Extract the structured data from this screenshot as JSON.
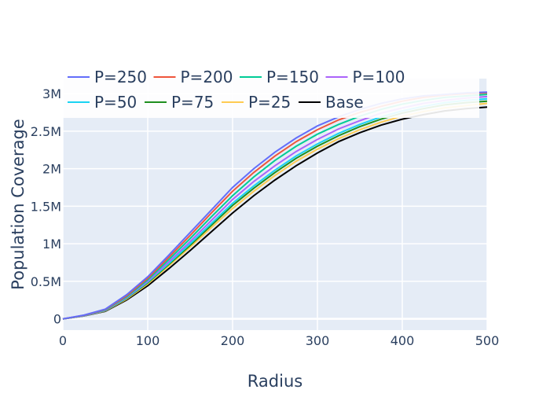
{
  "chart_data": {
    "type": "line",
    "xlabel": "Radius",
    "ylabel": "Population Coverage",
    "xlim": [
      0,
      500
    ],
    "ylim": [
      -150000,
      3200000
    ],
    "x_ticks": [
      0,
      100,
      200,
      300,
      400,
      500
    ],
    "x_tick_labels": [
      "0",
      "100",
      "200",
      "300",
      "400",
      "500"
    ],
    "y_ticks": [
      0,
      500000,
      1000000,
      1500000,
      2000000,
      2500000,
      3000000
    ],
    "y_tick_labels": [
      "0",
      "0.5M",
      "1M",
      "1.5M",
      "2M",
      "2.5M",
      "3M"
    ],
    "grid": true,
    "legend_position": "top",
    "x": [
      0,
      25,
      50,
      75,
      100,
      125,
      150,
      175,
      200,
      225,
      250,
      275,
      300,
      325,
      350,
      375,
      400,
      425,
      450,
      475,
      500
    ],
    "series": [
      {
        "name": "P=250",
        "color": "#636efa",
        "values": [
          0,
          50000,
          130000,
          320000,
          560000,
          850000,
          1150000,
          1450000,
          1750000,
          2000000,
          2220000,
          2410000,
          2570000,
          2690000,
          2790000,
          2870000,
          2930000,
          2970000,
          2990000,
          3010000,
          3020000
        ]
      },
      {
        "name": "P=200",
        "color": "#ef553b",
        "values": [
          0,
          48000,
          125000,
          305000,
          540000,
          820000,
          1110000,
          1410000,
          1700000,
          1950000,
          2170000,
          2360000,
          2520000,
          2650000,
          2750000,
          2830000,
          2900000,
          2950000,
          2980000,
          3000000,
          3010000
        ]
      },
      {
        "name": "P=150",
        "color": "#00cc96",
        "values": [
          0,
          46000,
          120000,
          295000,
          520000,
          790000,
          1070000,
          1360000,
          1640000,
          1890000,
          2110000,
          2300000,
          2460000,
          2590000,
          2700000,
          2790000,
          2860000,
          2910000,
          2950000,
          2970000,
          2990000
        ]
      },
      {
        "name": "P=100",
        "color": "#ab63fa",
        "values": [
          0,
          44000,
          115000,
          285000,
          500000,
          760000,
          1030000,
          1310000,
          1590000,
          1830000,
          2040000,
          2230000,
          2390000,
          2530000,
          2640000,
          2740000,
          2810000,
          2870000,
          2910000,
          2940000,
          2960000
        ]
      },
      {
        "name": "P=50",
        "color": "#19d3f3",
        "values": [
          0,
          43000,
          112000,
          278000,
          490000,
          740000,
          1000000,
          1270000,
          1540000,
          1770000,
          1980000,
          2170000,
          2330000,
          2470000,
          2590000,
          2690000,
          2770000,
          2830000,
          2880000,
          2910000,
          2930000
        ]
      },
      {
        "name": "P=75",
        "color": "#1f8f1f",
        "values": [
          0,
          42000,
          110000,
          272000,
          480000,
          725000,
          980000,
          1245000,
          1510000,
          1740000,
          1950000,
          2140000,
          2300000,
          2440000,
          2560000,
          2660000,
          2740000,
          2800000,
          2850000,
          2880000,
          2900000
        ]
      },
      {
        "name": "P=25",
        "color": "#fecb52",
        "values": [
          0,
          41000,
          105000,
          262000,
          465000,
          705000,
          955000,
          1215000,
          1470000,
          1700000,
          1910000,
          2100000,
          2260000,
          2400000,
          2520000,
          2620000,
          2700000,
          2760000,
          2810000,
          2840000,
          2870000
        ]
      },
      {
        "name": "Base",
        "color": "#000000",
        "values": [
          0,
          40000,
          100000,
          250000,
          440000,
          670000,
          910000,
          1160000,
          1410000,
          1640000,
          1850000,
          2040000,
          2210000,
          2360000,
          2480000,
          2580000,
          2660000,
          2720000,
          2770000,
          2800000,
          2820000
        ]
      }
    ]
  }
}
